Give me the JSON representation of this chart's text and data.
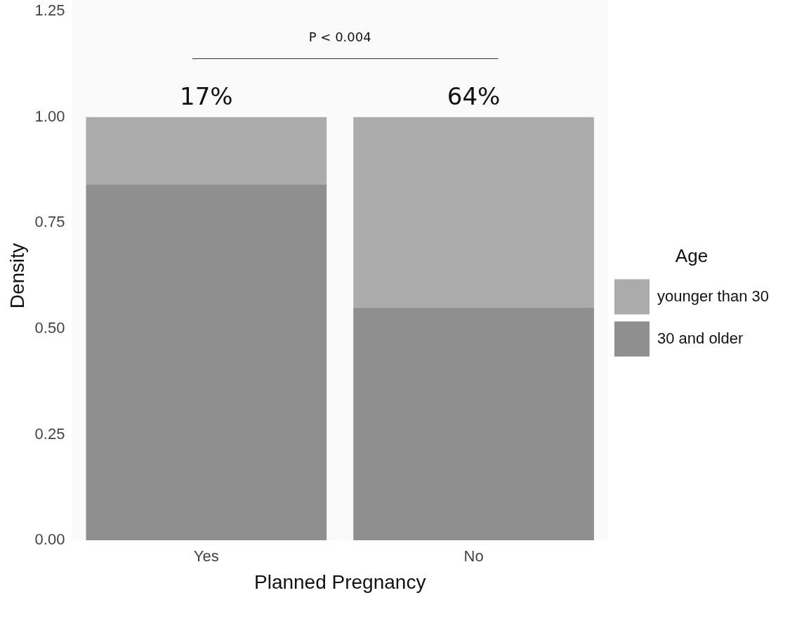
{
  "chart_data": {
    "type": "bar",
    "stacked": true,
    "xlabel": "Planned Pregnancy",
    "ylabel": "Density",
    "legend_title": "Age",
    "legend": "right",
    "categories": [
      "Yes",
      "No"
    ],
    "series": [
      {
        "name": "30 and older",
        "color": "#8f8f8f",
        "values": [
          0.84,
          0.55
        ]
      },
      {
        "name": "younger than 30",
        "color": "#ababab",
        "values": [
          0.16,
          0.45
        ]
      }
    ],
    "ylim": [
      0,
      1.25
    ],
    "yticks": [
      {
        "value": 0,
        "label": "0.00"
      },
      {
        "value": 0.25,
        "label": "0.25"
      },
      {
        "value": 0.5,
        "label": "0.50"
      },
      {
        "value": 0.75,
        "label": "0.75"
      },
      {
        "value": 1,
        "label": "1.00"
      },
      {
        "value": 1.25,
        "label": "1.25"
      }
    ],
    "grid": false,
    "annotations": [
      "P < 0.004",
      "17%",
      "64%"
    ]
  }
}
